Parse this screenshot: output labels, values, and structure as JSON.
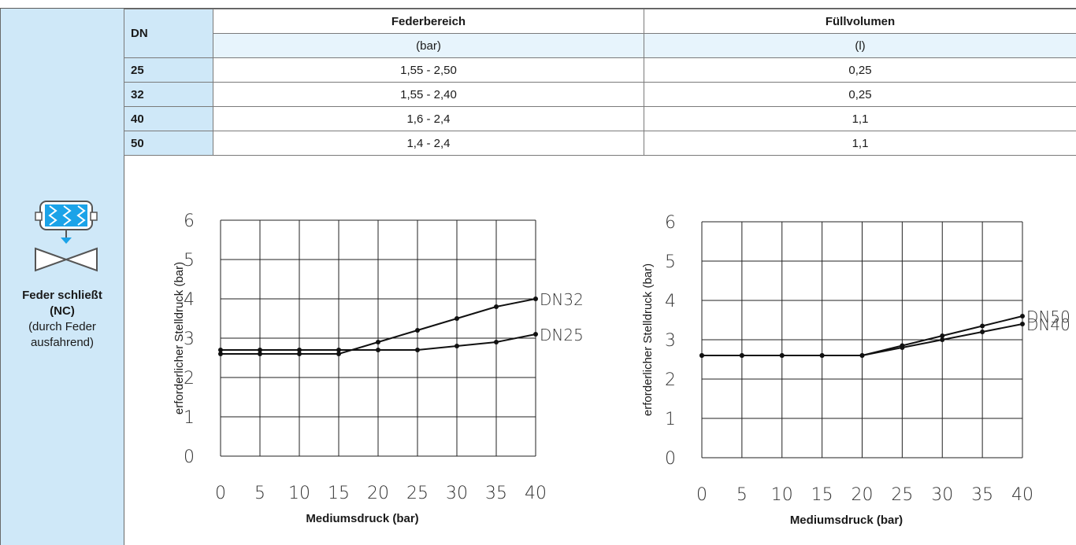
{
  "table": {
    "dn_header": "DN",
    "col1_header": "Federbereich",
    "col2_header": "Füllvolumen",
    "col1_unit": "(bar)",
    "col2_unit": "(l)",
    "rows": [
      {
        "dn": "25",
        "range": "1,55 - 2,50",
        "volume": "0,25"
      },
      {
        "dn": "32",
        "range": "1,55 - 2,40",
        "volume": "0,25"
      },
      {
        "dn": "40",
        "range": "1,6 - 2,4",
        "volume": "1,1"
      },
      {
        "dn": "50",
        "range": "1,4 - 2,4",
        "volume": "1,1"
      }
    ]
  },
  "sidebar": {
    "icon": "spring-close-valve-icon",
    "title_line1": "Feder schließt",
    "title_line2": "(NC)",
    "sub_line1": "(durch Feder",
    "sub_line2": "ausfahrend)"
  },
  "colors": {
    "sidebar_bg": "#cfe8f8",
    "unit_row_bg": "#e7f4fc",
    "icon_blue": "#1ba3e8"
  },
  "chart_data": [
    {
      "type": "line",
      "xlabel": "Mediumsdruck (bar)",
      "ylabel": "erforderlicher Stelldruck (bar)",
      "xlim": [
        0,
        40
      ],
      "ylim": [
        0,
        6
      ],
      "xticks": [
        0,
        5,
        10,
        15,
        20,
        25,
        30,
        35,
        40
      ],
      "yticks": [
        0,
        1,
        2,
        3,
        4,
        5,
        6
      ],
      "grid": true,
      "x": [
        0,
        5,
        10,
        15,
        20,
        25,
        30,
        35,
        40
      ],
      "series": [
        {
          "name": "DN32",
          "values": [
            2.6,
            2.6,
            2.6,
            2.6,
            2.9,
            3.2,
            3.5,
            3.8,
            4.0
          ]
        },
        {
          "name": "DN25",
          "values": [
            2.7,
            2.7,
            2.7,
            2.7,
            2.7,
            2.7,
            2.8,
            2.9,
            3.1
          ]
        }
      ]
    },
    {
      "type": "line",
      "xlabel": "Mediumsdruck (bar)",
      "ylabel": "erforderlicher Stelldruck (bar)",
      "xlim": [
        0,
        40
      ],
      "ylim": [
        0,
        6
      ],
      "xticks": [
        0,
        5,
        10,
        15,
        20,
        25,
        30,
        35,
        40
      ],
      "yticks": [
        0,
        1,
        2,
        3,
        4,
        5,
        6
      ],
      "grid": true,
      "x": [
        0,
        5,
        10,
        15,
        20,
        25,
        30,
        35,
        40
      ],
      "series": [
        {
          "name": "DN50",
          "values": [
            2.6,
            2.6,
            2.6,
            2.6,
            2.6,
            2.85,
            3.1,
            3.35,
            3.6
          ]
        },
        {
          "name": "DN40",
          "values": [
            2.6,
            2.6,
            2.6,
            2.6,
            2.6,
            2.8,
            3.0,
            3.2,
            3.4
          ]
        }
      ]
    }
  ]
}
